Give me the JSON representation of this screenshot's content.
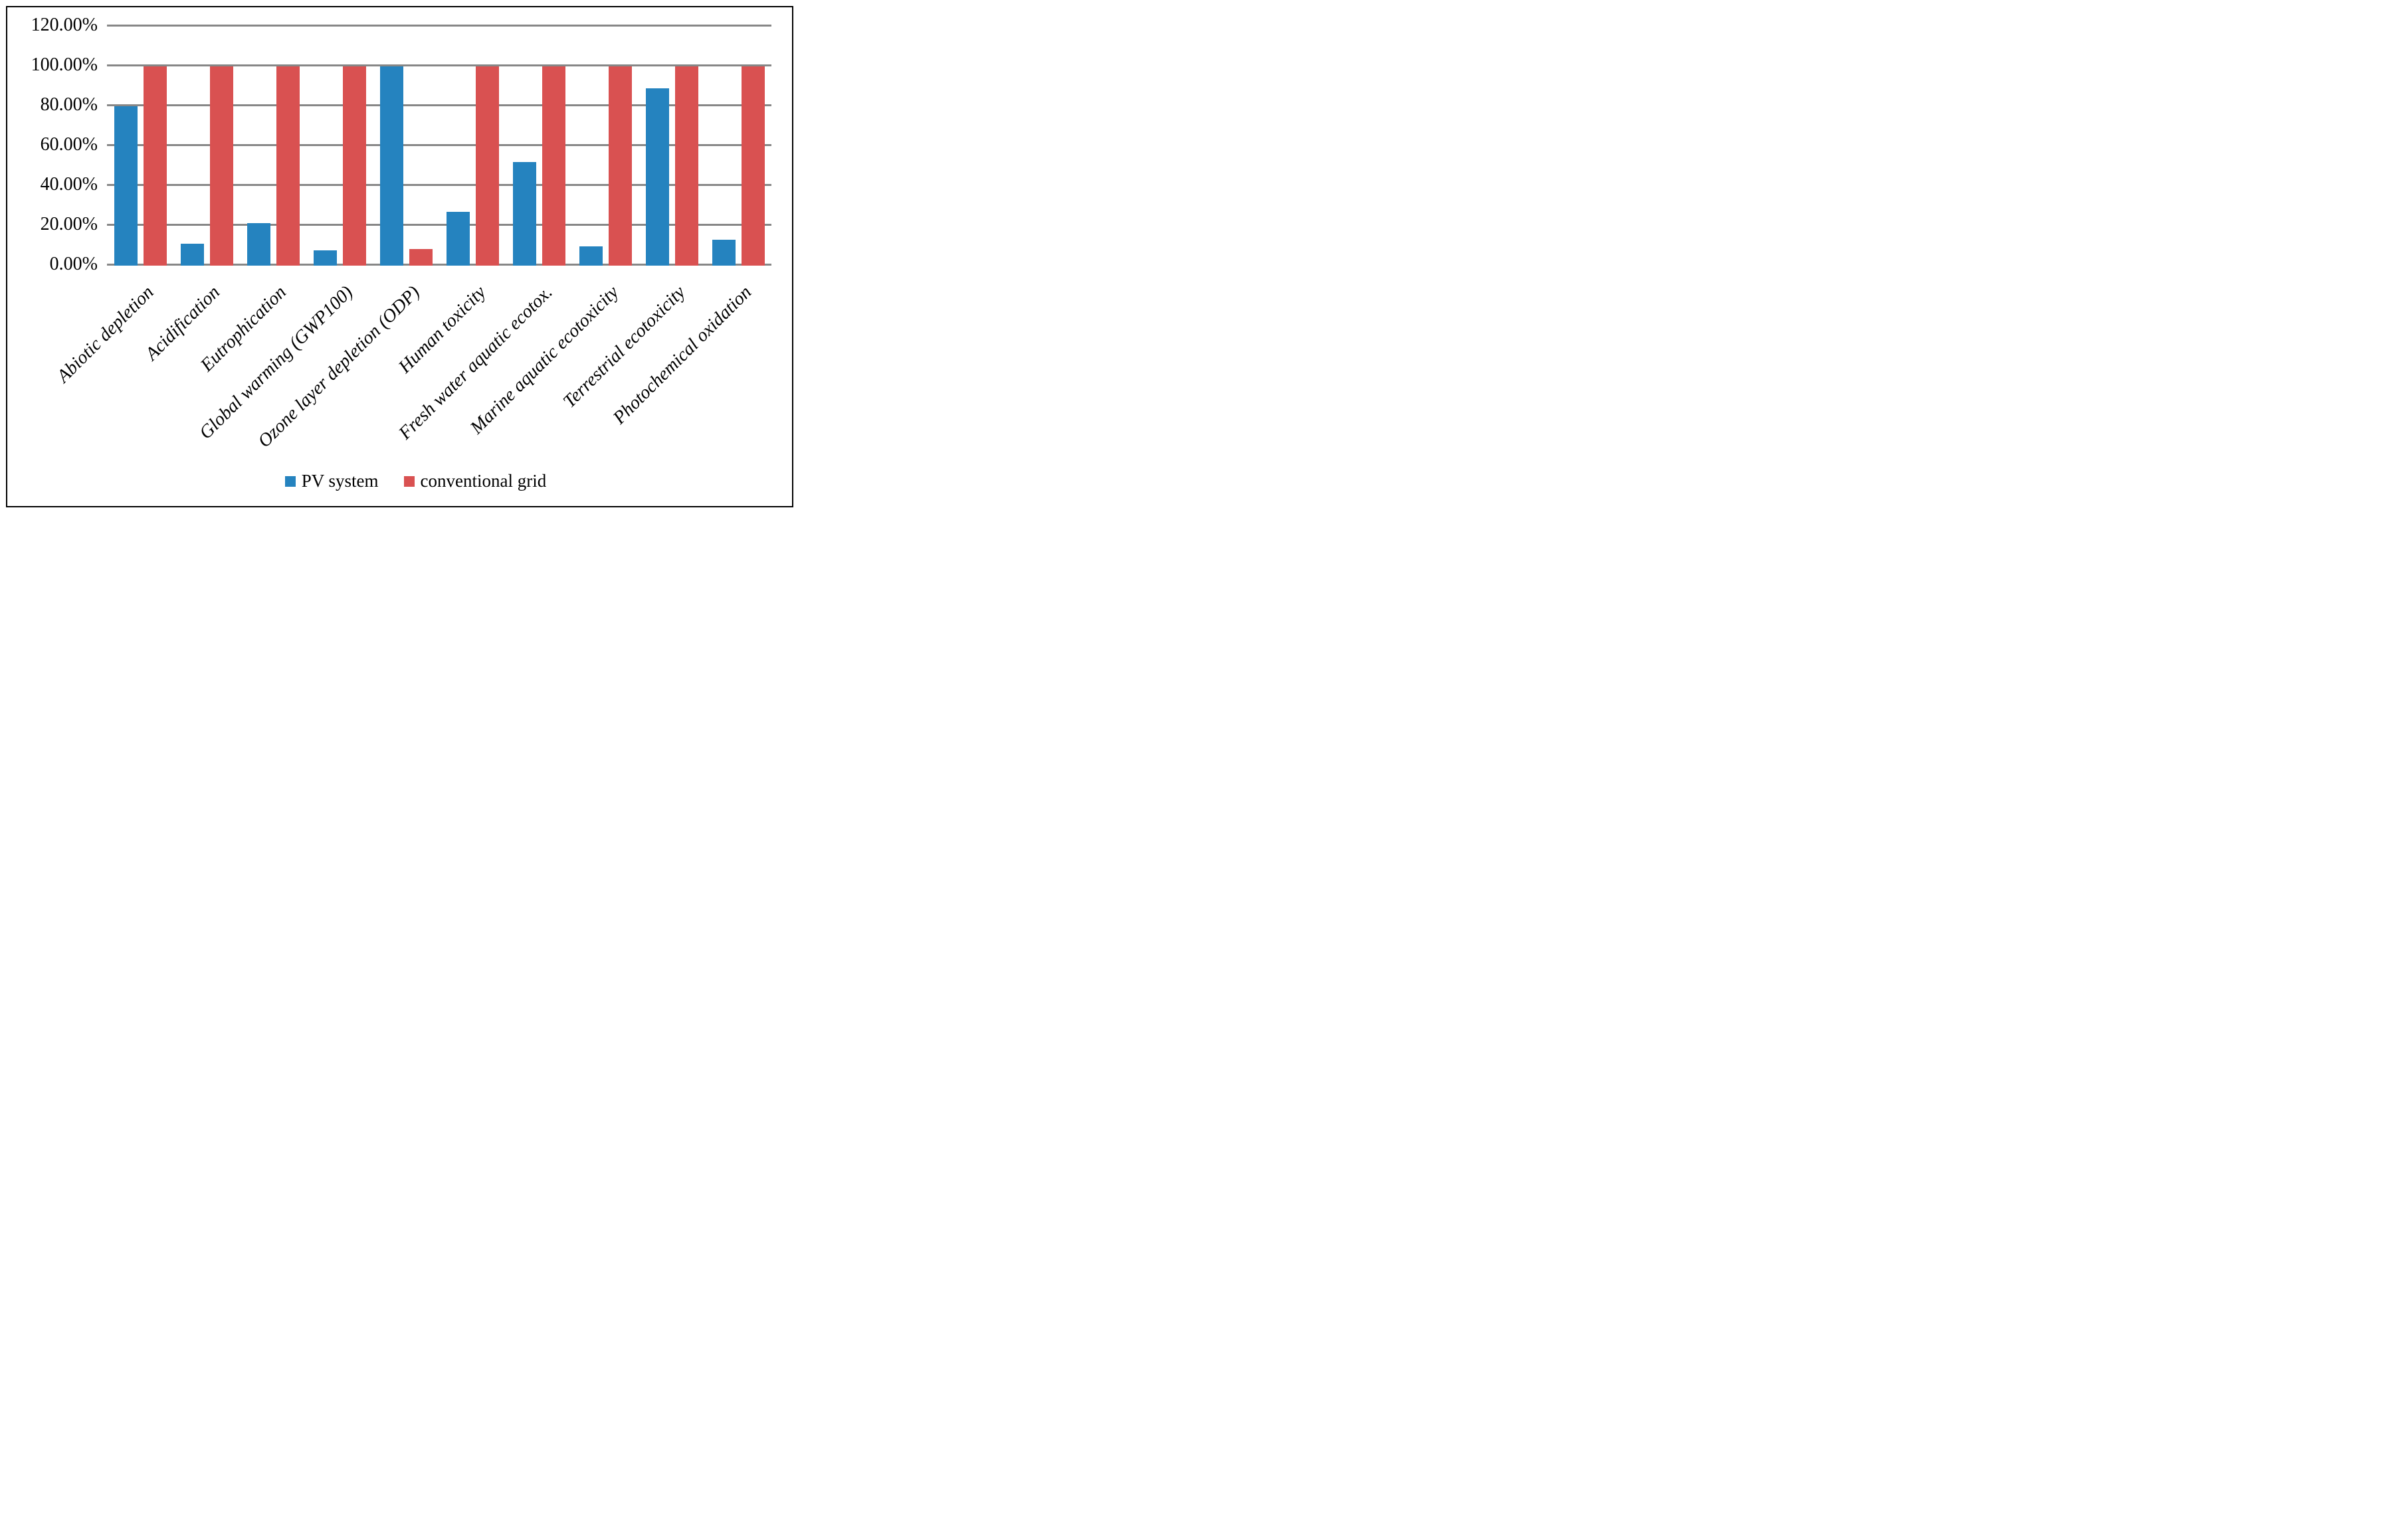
{
  "frame": {
    "background": "#FFFFFF",
    "border_color": "#000000"
  },
  "chart_data": {
    "type": "bar",
    "title": "",
    "xlabel": "",
    "ylabel": "",
    "categories": [
      "Abiotic depletion",
      "Acidification",
      "Eutrophication",
      "Global warming (GWP100)",
      "Ozone layer depletion (ODP)",
      "Human toxicity",
      "Fresh water aquatic ecotox.",
      "Marine aquatic ecotoxicity",
      "Terrestrial ecotoxicity",
      "Photochemical oxidation"
    ],
    "series": [
      {
        "name": "PV system",
        "color": "#2583BF",
        "values": [
          80,
          11,
          21.5,
          7.6,
          100,
          27,
          52,
          9.7,
          89,
          13
        ]
      },
      {
        "name": "conventional grid",
        "color": "#D95151",
        "values": [
          100,
          100,
          100,
          100,
          8.5,
          100,
          100,
          100,
          100,
          100
        ]
      }
    ],
    "y_axis": {
      "min": 0,
      "max": 120,
      "tick_values": [
        0,
        20,
        40,
        60,
        80,
        100,
        120
      ],
      "tick_labels": [
        "0.00%",
        "20.00%",
        "40.00%",
        "60.00%",
        "80.00%",
        "100.00%",
        "120.00%"
      ]
    },
    "grid": true,
    "gridline_color": "#878787",
    "legend": {
      "position": "bottom",
      "entries": [
        "PV system",
        "conventional grid"
      ]
    }
  }
}
